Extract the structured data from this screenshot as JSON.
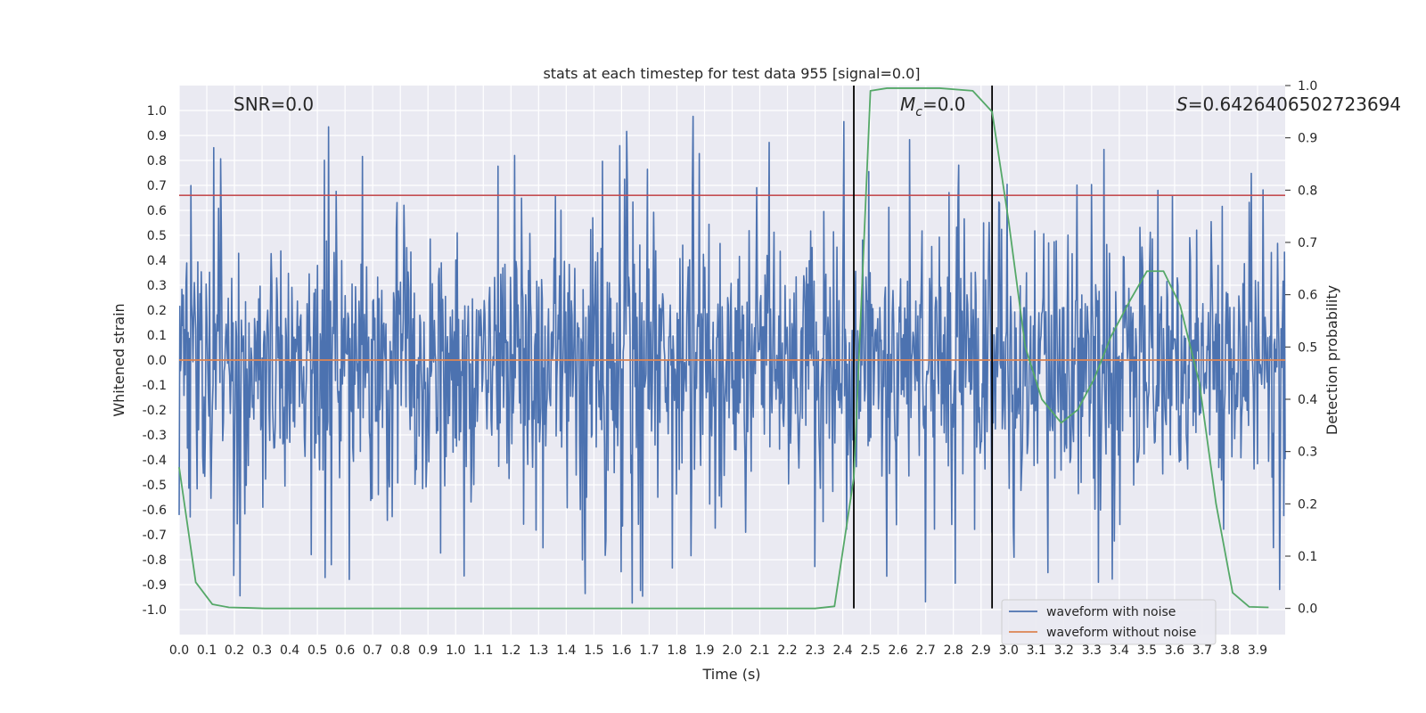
{
  "chart_data": {
    "type": "line",
    "title": "stats at each timestep for test data 955 [signal=0.0]",
    "xlabel": "Time (s)",
    "ylabel": "Whitened strain",
    "y2label": "Detection probability",
    "xlim": [
      0.0,
      4.0
    ],
    "ylim": [
      -1.1,
      1.1
    ],
    "y2lim": [
      -0.05,
      1.0
    ],
    "x_ticks": [
      "0.0",
      "0.1",
      "0.2",
      "0.3",
      "0.4",
      "0.5",
      "0.6",
      "0.7",
      "0.8",
      "0.9",
      "1.0",
      "1.1",
      "1.2",
      "1.3",
      "1.4",
      "1.5",
      "1.6",
      "1.7",
      "1.8",
      "1.9",
      "2.0",
      "2.1",
      "2.2",
      "2.3",
      "2.4",
      "2.5",
      "2.6",
      "2.7",
      "2.8",
      "2.9",
      "3.0",
      "3.1",
      "3.2",
      "3.3",
      "3.4",
      "3.5",
      "3.6",
      "3.7",
      "3.8",
      "3.9"
    ],
    "y_ticks": [
      "1.0",
      "0.9",
      "0.8",
      "0.7",
      "0.6",
      "0.5",
      "0.4",
      "0.3",
      "0.2",
      "0.1",
      "0.0",
      "-0.1",
      "-0.2",
      "-0.3",
      "-0.4",
      "-0.5",
      "-0.6",
      "-0.7",
      "-0.8",
      "-0.9",
      "-1.0"
    ],
    "y2_ticks": [
      "1.0",
      "0.9",
      "0.8",
      "0.7",
      "0.6",
      "0.5",
      "0.4",
      "0.3",
      "0.2",
      "0.1",
      "0.0"
    ],
    "grid": true,
    "legend_position": "bottom-right",
    "annotations": {
      "snr": "SNR=0.0",
      "mc_symbol": "M",
      "mc_sub": "c",
      "mc_value": "=0.0",
      "s_symbol": "S",
      "s_value": "=0.6426406502723694"
    },
    "threshold": 0.79,
    "threshold_color": "#c44e52",
    "vlines": [
      2.44,
      2.94
    ],
    "series": [
      {
        "name": "waveform with noise",
        "color": "#4c72b0",
        "seed": 955,
        "count": 1600,
        "amplitude_range": [
          -1.0,
          0.99
        ]
      },
      {
        "name": "waveform without noise",
        "color": "#dd8452",
        "values": [
          0.0,
          0.0
        ]
      },
      {
        "name": "",
        "color": "#55a868",
        "axis": "right",
        "x": [
          0.0,
          0.06,
          0.12,
          0.18,
          0.25,
          0.31,
          0.37,
          0.5,
          1.0,
          1.5,
          2.0,
          2.3,
          2.37,
          2.44,
          2.5,
          2.56,
          2.62,
          2.75,
          2.87,
          2.94,
          3.0,
          3.06,
          3.12,
          3.19,
          3.25,
          3.31,
          3.37,
          3.44,
          3.5,
          3.56,
          3.62,
          3.69,
          3.75,
          3.81,
          3.87,
          3.94
        ],
        "values": [
          0.27,
          0.05,
          0.008,
          0.002,
          0.001,
          0.0,
          0.0,
          0.0,
          0.0,
          0.0,
          0.0,
          0.0,
          0.004,
          0.25,
          0.99,
          0.995,
          0.995,
          0.995,
          0.99,
          0.95,
          0.74,
          0.5,
          0.4,
          0.355,
          0.38,
          0.44,
          0.52,
          0.59,
          0.645,
          0.645,
          0.58,
          0.43,
          0.2,
          0.03,
          0.003,
          0.002
        ]
      }
    ]
  }
}
